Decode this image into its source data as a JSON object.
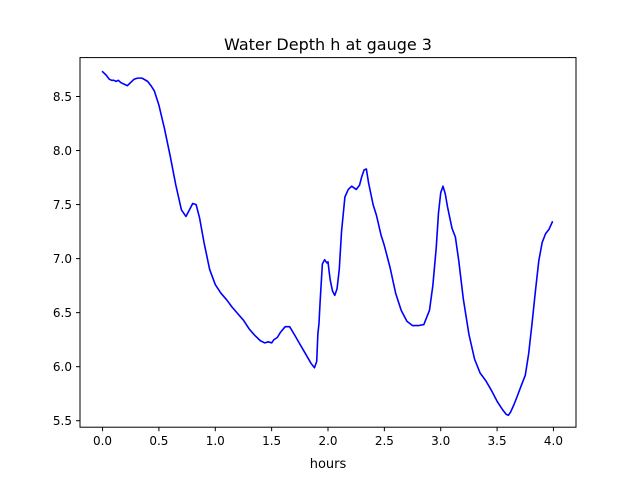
{
  "chart_data": {
    "type": "line",
    "title": "Water Depth h at gauge 3",
    "xlabel": "hours",
    "ylabel": "",
    "xlim": [
      -0.2,
      4.2
    ],
    "ylim": [
      5.44,
      8.86
    ],
    "xticks": [
      0.0,
      0.5,
      1.0,
      1.5,
      2.0,
      2.5,
      3.0,
      3.5,
      4.0
    ],
    "xtick_labels": [
      "0.0",
      "0.5",
      "1.0",
      "1.5",
      "2.0",
      "2.5",
      "3.0",
      "3.5",
      "4.0"
    ],
    "yticks": [
      5.5,
      6.0,
      6.5,
      7.0,
      7.5,
      8.0,
      8.5
    ],
    "ytick_labels": [
      "5.5",
      "6.0",
      "6.5",
      "7.0",
      "7.5",
      "8.0",
      "8.5"
    ],
    "grid": false,
    "series": [
      {
        "color": "#0000ff",
        "x": [
          0.0,
          0.03,
          0.06,
          0.08,
          0.1,
          0.12,
          0.14,
          0.16,
          0.18,
          0.2,
          0.22,
          0.25,
          0.28,
          0.31,
          0.35,
          0.4,
          0.43,
          0.46,
          0.5,
          0.55,
          0.6,
          0.65,
          0.7,
          0.74,
          0.77,
          0.8,
          0.83,
          0.86,
          0.9,
          0.95,
          1.0,
          1.05,
          1.1,
          1.15,
          1.2,
          1.25,
          1.3,
          1.35,
          1.4,
          1.44,
          1.47,
          1.5,
          1.52,
          1.55,
          1.58,
          1.62,
          1.66,
          1.7,
          1.75,
          1.8,
          1.85,
          1.88,
          1.9,
          1.91,
          1.92,
          1.93,
          1.95,
          1.97,
          1.99,
          2.0,
          2.01,
          2.02,
          2.04,
          2.06,
          2.08,
          2.1,
          2.12,
          2.15,
          2.18,
          2.21,
          2.25,
          2.28,
          2.3,
          2.32,
          2.34,
          2.36,
          2.38,
          2.4,
          2.43,
          2.47,
          2.5,
          2.55,
          2.6,
          2.65,
          2.7,
          2.75,
          2.8,
          2.85,
          2.9,
          2.93,
          2.96,
          2.98,
          3.0,
          3.02,
          3.04,
          3.06,
          3.08,
          3.1,
          3.13,
          3.16,
          3.2,
          3.25,
          3.3,
          3.35,
          3.4,
          3.45,
          3.5,
          3.55,
          3.58,
          3.6,
          3.62,
          3.65,
          3.68,
          3.72,
          3.75,
          3.78,
          3.81,
          3.84,
          3.87,
          3.9,
          3.93,
          3.96,
          3.99
        ],
        "y": [
          8.73,
          8.7,
          8.66,
          8.65,
          8.65,
          8.64,
          8.65,
          8.63,
          8.62,
          8.61,
          8.6,
          8.63,
          8.66,
          8.67,
          8.67,
          8.64,
          8.6,
          8.55,
          8.42,
          8.2,
          7.95,
          7.68,
          7.45,
          7.39,
          7.45,
          7.51,
          7.5,
          7.38,
          7.15,
          6.9,
          6.76,
          6.68,
          6.62,
          6.55,
          6.49,
          6.43,
          6.35,
          6.29,
          6.24,
          6.22,
          6.23,
          6.22,
          6.25,
          6.27,
          6.32,
          6.37,
          6.37,
          6.3,
          6.21,
          6.12,
          6.03,
          5.99,
          6.05,
          6.3,
          6.4,
          6.6,
          6.95,
          6.99,
          6.96,
          6.97,
          6.88,
          6.8,
          6.7,
          6.66,
          6.72,
          6.9,
          7.25,
          7.57,
          7.64,
          7.67,
          7.64,
          7.68,
          7.76,
          7.82,
          7.83,
          7.7,
          7.6,
          7.5,
          7.4,
          7.22,
          7.12,
          6.92,
          6.68,
          6.52,
          6.42,
          6.38,
          6.38,
          6.39,
          6.52,
          6.75,
          7.1,
          7.42,
          7.61,
          7.67,
          7.6,
          7.48,
          7.38,
          7.28,
          7.2,
          6.98,
          6.63,
          6.3,
          6.07,
          5.94,
          5.87,
          5.78,
          5.68,
          5.6,
          5.56,
          5.55,
          5.58,
          5.65,
          5.73,
          5.84,
          5.92,
          6.12,
          6.4,
          6.7,
          6.98,
          7.15,
          7.23,
          7.27,
          7.34
        ]
      }
    ]
  }
}
